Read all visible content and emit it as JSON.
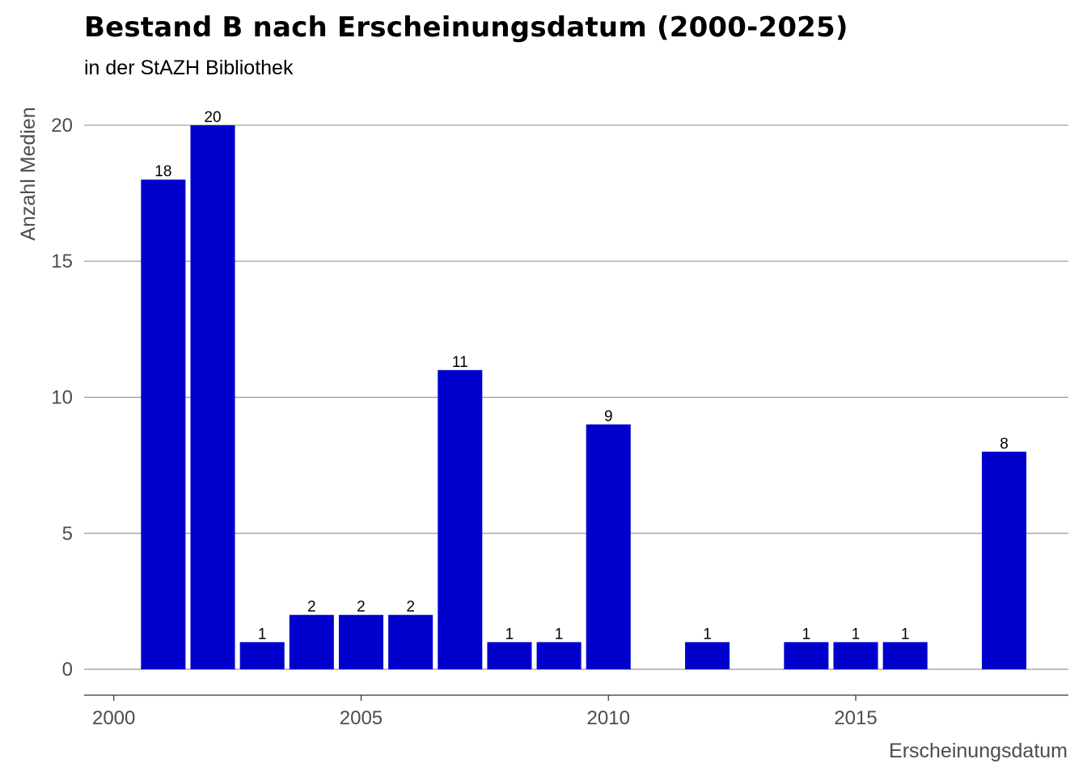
{
  "chart_data": {
    "type": "bar",
    "title": "Bestand B nach Erscheinungsdatum (2000-2025)",
    "subtitle": "in der StAZH Bibliothek",
    "xlabel": "Erscheinungsdatum",
    "ylabel": "Anzahl Medien",
    "x": [
      2001,
      2002,
      2003,
      2004,
      2005,
      2006,
      2007,
      2008,
      2009,
      2010,
      2012,
      2014,
      2015,
      2016,
      2018
    ],
    "values": [
      18,
      20,
      1,
      2,
      2,
      2,
      11,
      1,
      1,
      9,
      1,
      1,
      1,
      1,
      8
    ],
    "xlim": [
      1999.4,
      2019.3
    ],
    "ylim": [
      -0.95,
      20.8
    ],
    "x_ticks": [
      2000,
      2005,
      2010,
      2015
    ],
    "y_ticks": [
      0,
      5,
      10,
      15,
      20
    ],
    "bar_color": "#0000CC",
    "grid": "horizontal",
    "legend": "none"
  }
}
